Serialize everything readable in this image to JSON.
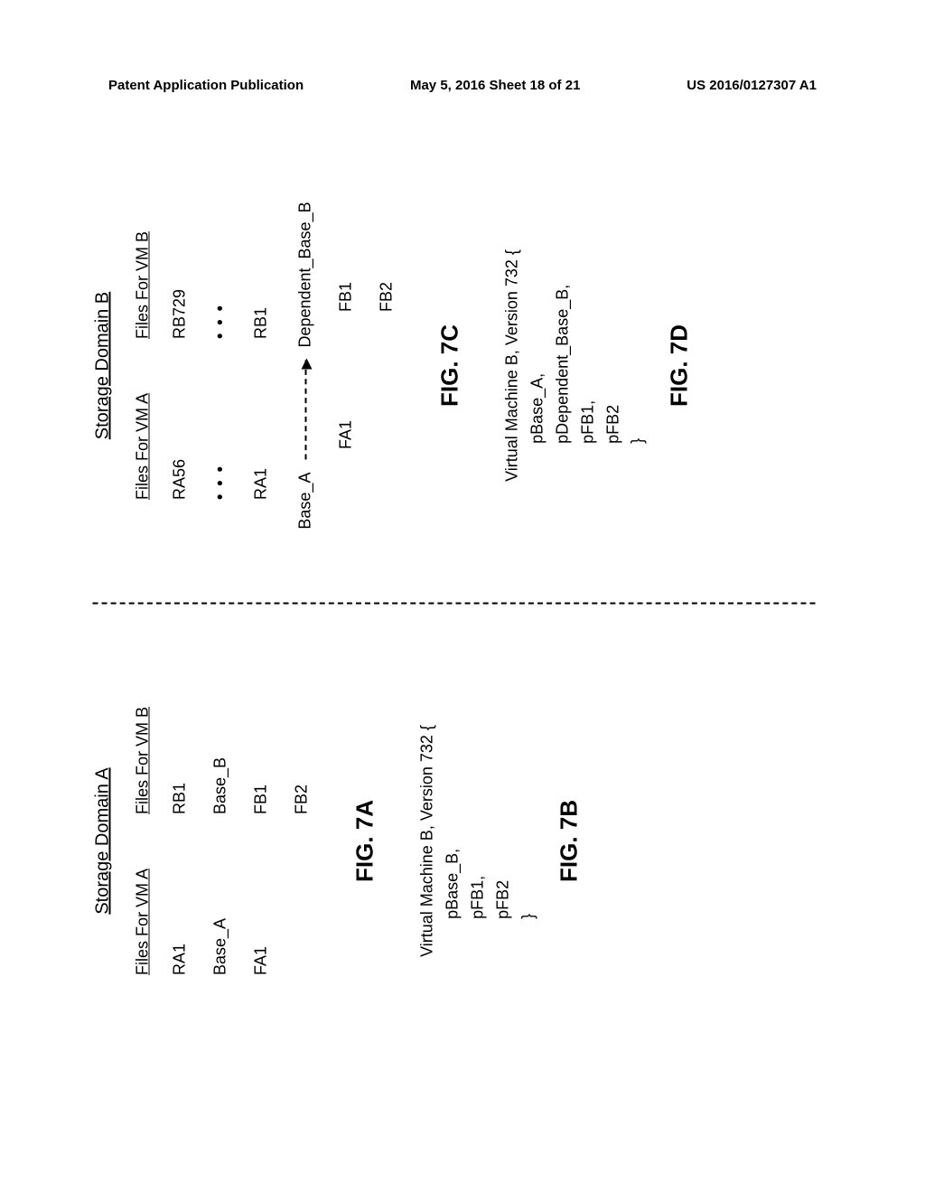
{
  "header": {
    "left": "Patent Application Publication",
    "center": "May 5, 2016  Sheet 18 of 21",
    "right": "US 2016/0127307 A1"
  },
  "left_panel": {
    "domain_title": "Storage Domain A",
    "col_a_header": "Files For VM A",
    "col_b_header": "Files For VM B",
    "vm_a_rows": [
      "RA1",
      "Base_A",
      "FA1"
    ],
    "vm_b_rows": [
      "RB1",
      "Base_B",
      "FB1",
      "FB2"
    ],
    "fig_top": "FIG. 7A",
    "code_title": "Virtual Machine B, Version 732 {",
    "code_lines": [
      "pBase_B,",
      "pFB1,",
      "pFB2"
    ],
    "code_close": "}",
    "fig_bottom": "FIG. 7B"
  },
  "right_panel": {
    "domain_title": "Storage Domain B",
    "col_a_header": "Files For VM A",
    "col_b_header": "Files For VM B",
    "vm_a_rows_pre": [
      "RA56"
    ],
    "vm_a_rows_post": [
      "RA1"
    ],
    "vm_b_rows_pre": [
      "RB729"
    ],
    "vm_b_rows_post": [
      "RB1"
    ],
    "base_src": "Base_A",
    "base_dst": "Dependent_Base_B",
    "vm_a_rows_after_base": [
      "FA1"
    ],
    "vm_b_rows_after_base": [
      "FB1",
      "FB2"
    ],
    "fig_top": "FIG. 7C",
    "code_title": "Virtual Machine B, Version 732 {",
    "code_lines": [
      "pBase_A,",
      "pDependent_Base_B,",
      "pFB1,",
      "pFB2"
    ],
    "code_close": "}",
    "fig_bottom": "FIG. 7D"
  }
}
